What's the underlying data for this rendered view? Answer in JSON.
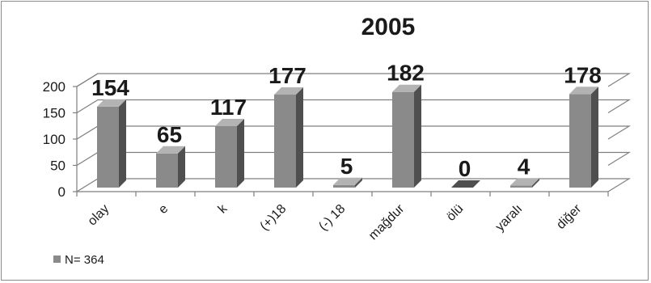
{
  "chart_data": {
    "type": "bar",
    "title": "2005",
    "categories": [
      "olay",
      "e",
      "k",
      "(+)18",
      "(-) 18",
      "mağdur",
      "ölü",
      "yaralı",
      "diğer"
    ],
    "series": [
      {
        "name": "N= 364",
        "values": [
          154,
          65,
          117,
          177,
          5,
          182,
          0,
          4,
          178
        ]
      }
    ],
    "data_labels": [
      "154",
      "65",
      "117",
      "177",
      "5",
      "182",
      "0",
      "4",
      "178"
    ],
    "y_ticks": [
      "0",
      "50",
      "100",
      "150",
      "200"
    ],
    "ylim": [
      0,
      200
    ],
    "grid": true,
    "legend_position": "bottom-left",
    "colors": {
      "bar_front": "#8a8a8a",
      "bar_side": "#4f4f4f",
      "bar_top": "#b3b3b3",
      "grid": "#7f7f7f"
    }
  }
}
